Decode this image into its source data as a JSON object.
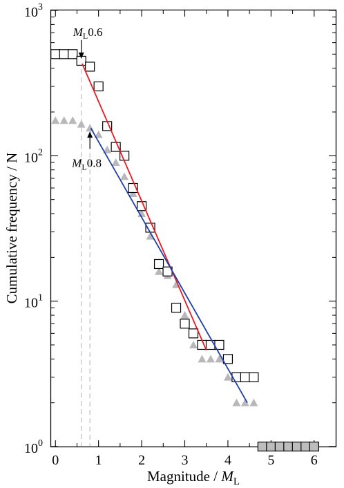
{
  "chart_data": {
    "type": "scatter",
    "xlabel": "Magnitude / ",
    "xlabel_italic": "M",
    "xlabel_sub": "L",
    "ylabel": "Cumulative frequency / N",
    "xlim": [
      -0.1,
      6.5
    ],
    "ylim_log10": [
      0,
      3
    ],
    "y_scale": "log",
    "x_ticks": [
      0,
      1,
      2,
      3,
      4,
      5,
      6
    ],
    "x_tick_labels": [
      "0",
      "1",
      "2",
      "3",
      "4",
      "5",
      "6"
    ],
    "y_ticks": [
      1,
      10,
      100,
      1000
    ],
    "y_tick_labels": [
      {
        "base": "10",
        "exp": "0"
      },
      {
        "base": "10",
        "exp": "1"
      },
      {
        "base": "10",
        "exp": "2"
      },
      {
        "base": "10",
        "exp": "3"
      }
    ],
    "colors": {
      "fit_red": "#e8191f",
      "fit_blue": "#1f3fa8",
      "triangles": "#b8b8bc",
      "squares": "#000000",
      "ref_lines": "#c8c8c8"
    },
    "series": [
      {
        "marker": "square",
        "points": [
          [
            0.0,
            500
          ],
          [
            0.2,
            500
          ],
          [
            0.4,
            500
          ],
          [
            0.6,
            450
          ],
          [
            0.8,
            410
          ],
          [
            1.0,
            300
          ],
          [
            1.2,
            160
          ],
          [
            1.4,
            115
          ],
          [
            1.6,
            100
          ],
          [
            1.8,
            60
          ],
          [
            2.0,
            45
          ],
          [
            2.2,
            32
          ],
          [
            2.4,
            18
          ],
          [
            2.6,
            16
          ],
          [
            2.8,
            9
          ],
          [
            3.0,
            7
          ],
          [
            3.2,
            6
          ],
          [
            3.4,
            5
          ],
          [
            3.6,
            5
          ],
          [
            3.8,
            5
          ],
          [
            4.0,
            4
          ],
          [
            4.2,
            3
          ],
          [
            4.4,
            3
          ],
          [
            4.6,
            3
          ],
          [
            4.8,
            1
          ],
          [
            5.0,
            1
          ],
          [
            5.2,
            1
          ],
          [
            5.4,
            1
          ],
          [
            5.6,
            1
          ],
          [
            5.8,
            1
          ],
          [
            6.0,
            1
          ]
        ]
      },
      {
        "marker": "triangle",
        "points": [
          [
            0.0,
            175
          ],
          [
            0.2,
            175
          ],
          [
            0.4,
            175
          ],
          [
            0.6,
            165
          ],
          [
            0.8,
            155
          ],
          [
            1.0,
            140
          ],
          [
            1.2,
            110
          ],
          [
            1.4,
            90
          ],
          [
            1.6,
            72
          ],
          [
            1.8,
            55
          ],
          [
            2.0,
            40
          ],
          [
            2.2,
            28
          ],
          [
            2.4,
            16
          ],
          [
            2.6,
            15
          ],
          [
            2.8,
            13
          ],
          [
            3.0,
            8
          ],
          [
            3.2,
            5
          ],
          [
            3.4,
            4
          ],
          [
            3.6,
            4
          ],
          [
            3.8,
            4
          ],
          [
            4.0,
            3
          ],
          [
            4.2,
            2
          ],
          [
            4.4,
            2
          ],
          [
            4.6,
            2
          ],
          [
            4.8,
            1
          ],
          [
            5.0,
            1
          ],
          [
            5.2,
            1
          ],
          [
            5.4,
            1
          ],
          [
            5.6,
            1
          ],
          [
            5.8,
            1
          ],
          [
            6.0,
            1
          ]
        ]
      }
    ],
    "fit_lines": [
      {
        "color_key": "fit_red",
        "x": [
          0.62,
          3.5
        ],
        "y": [
          430,
          4.6
        ]
      },
      {
        "color_key": "fit_blue",
        "x": [
          0.82,
          4.45
        ],
        "y": [
          155,
          2.0
        ]
      }
    ],
    "reference_lines": [
      {
        "x": 0.6,
        "y_top": 450
      },
      {
        "x": 0.8,
        "y_top": 155
      }
    ],
    "annotations": [
      {
        "name": "mc-06",
        "italic": "M",
        "sub": "L",
        "text": "0.6",
        "x": 0.6,
        "y": 450
      },
      {
        "name": "mc-08",
        "italic": "M",
        "sub": "L",
        "text": "0.8",
        "x": 0.8,
        "y": 155
      }
    ]
  }
}
